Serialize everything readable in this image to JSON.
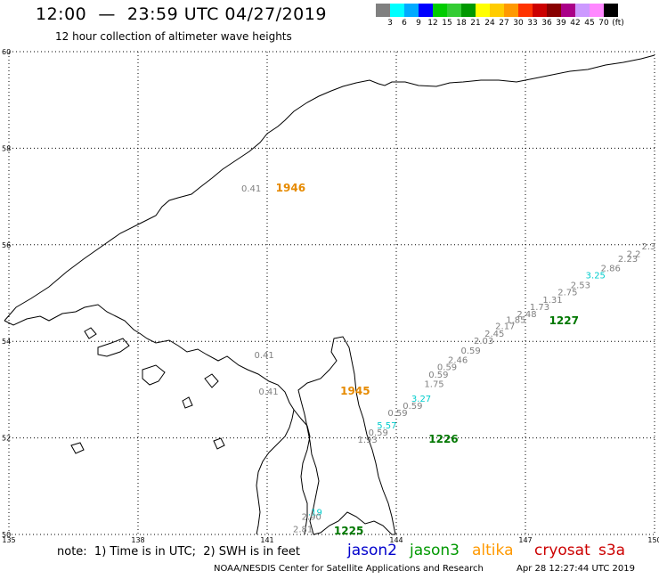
{
  "header": {
    "title": "12:00  —  23:59 UTC 04/27/2019",
    "subtitle": "12 hour collection of altimeter wave heights"
  },
  "colorbar": {
    "colors": [
      "#808080",
      "#00ffff",
      "#00aaff",
      "#0000ff",
      "#00cc00",
      "#33cc33",
      "#009900",
      "#ffff00",
      "#ffcc00",
      "#ff9900",
      "#ff3300",
      "#cc0000",
      "#880000",
      "#aa0088",
      "#cc99ff",
      "#ff88ff",
      "#000000"
    ],
    "labels": [
      "3",
      "6",
      "9",
      "12",
      "15",
      "18",
      "21",
      "24",
      "27",
      "30",
      "33",
      "36",
      "39",
      "42",
      "45",
      "70",
      "(ft)"
    ]
  },
  "axes": {
    "lat_labels": [
      "60",
      "58",
      "56",
      "54",
      "52",
      "50"
    ],
    "lon_labels": [
      "135",
      "138",
      "141",
      "144",
      "147",
      "150"
    ]
  },
  "tracks": [
    {
      "sat": "altika",
      "time": "1946",
      "color": "#e68a00",
      "values": [
        {
          "v": "0.41",
          "c": "#808080",
          "lon": 140.4,
          "lat": 57.1
        }
      ]
    },
    {
      "sat": "altika",
      "time": "1945",
      "color": "#e68a00",
      "values": [
        {
          "v": "0.41",
          "c": "#808080",
          "lon": 140.7,
          "lat": 53.65
        },
        {
          "v": "0.41",
          "c": "#808080",
          "lon": 140.8,
          "lat": 52.9
        }
      ]
    },
    {
      "sat": "jason3",
      "time": "1227",
      "color": "#007700",
      "values": [
        {
          "v": "2.3",
          "c": "#808080",
          "lon": 149.7,
          "lat": 55.9
        },
        {
          "v": "2.2",
          "c": "#808080",
          "lon": 149.35,
          "lat": 55.75
        },
        {
          "v": "2.23",
          "c": "#808080",
          "lon": 149.15,
          "lat": 55.65
        },
        {
          "v": "2.86",
          "c": "#808080",
          "lon": 148.75,
          "lat": 55.45
        },
        {
          "v": "3.25",
          "c": "#00cccc",
          "lon": 148.4,
          "lat": 55.3
        },
        {
          "v": "2.53",
          "c": "#808080",
          "lon": 148.05,
          "lat": 55.1
        },
        {
          "v": "2.75",
          "c": "#808080",
          "lon": 147.75,
          "lat": 54.95
        },
        {
          "v": "1.31",
          "c": "#808080",
          "lon": 147.4,
          "lat": 54.8
        },
        {
          "v": "1.73",
          "c": "#808080",
          "lon": 147.1,
          "lat": 54.65
        },
        {
          "v": "2.48",
          "c": "#808080",
          "lon": 146.8,
          "lat": 54.5
        },
        {
          "v": "1.85",
          "c": "#808080",
          "lon": 146.55,
          "lat": 54.38
        },
        {
          "v": "2.17",
          "c": "#808080",
          "lon": 146.3,
          "lat": 54.25
        },
        {
          "v": "2.45",
          "c": "#808080",
          "lon": 146.05,
          "lat": 54.1
        },
        {
          "v": "2.03",
          "c": "#808080",
          "lon": 145.8,
          "lat": 53.95
        },
        {
          "v": "0.59",
          "c": "#808080",
          "lon": 145.5,
          "lat": 53.75
        },
        {
          "v": "2.46",
          "c": "#808080",
          "lon": 145.2,
          "lat": 53.55
        },
        {
          "v": "0.59",
          "c": "#808080",
          "lon": 144.95,
          "lat": 53.4
        },
        {
          "v": "0.59",
          "c": "#808080",
          "lon": 144.75,
          "lat": 53.25
        }
      ]
    },
    {
      "sat": "jason3",
      "time": "1226",
      "color": "#007700",
      "values": [
        {
          "v": "1.75",
          "c": "#808080",
          "lon": 144.65,
          "lat": 53.05
        },
        {
          "v": "3.27",
          "c": "#00cccc",
          "lon": 144.35,
          "lat": 52.75
        },
        {
          "v": "0.59",
          "c": "#808080",
          "lon": 144.15,
          "lat": 52.6
        },
        {
          "v": "0.59",
          "c": "#808080",
          "lon": 143.8,
          "lat": 52.45
        },
        {
          "v": "5.57",
          "c": "#00cccc",
          "lon": 143.55,
          "lat": 52.2
        },
        {
          "v": "0.59",
          "c": "#808080",
          "lon": 143.35,
          "lat": 52.05
        },
        {
          "v": "1.93",
          "c": "#808080",
          "lon": 143.1,
          "lat": 51.9
        }
      ]
    },
    {
      "sat": "jason3",
      "time": "1225",
      "color": "#007700",
      "values": [
        {
          "v": ".19",
          "c": "#00cccc",
          "lon": 141.95,
          "lat": 50.4
        },
        {
          "v": "2.90",
          "c": "#808080",
          "lon": 141.8,
          "lat": 50.3
        },
        {
          "v": "2.81",
          "c": "#808080",
          "lon": 141.6,
          "lat": 50.05
        }
      ]
    }
  ],
  "track_labels": [
    {
      "text": "1946",
      "color": "#e68a00",
      "lon": 141.2,
      "lat": 57.1
    },
    {
      "text": "1945",
      "color": "#e68a00",
      "lon": 142.7,
      "lat": 52.9
    },
    {
      "text": "1227",
      "color": "#007700",
      "lon": 147.55,
      "lat": 54.35
    },
    {
      "text": "1226",
      "color": "#007700",
      "lon": 144.75,
      "lat": 51.9
    },
    {
      "text": "1225",
      "color": "#007700",
      "lon": 142.55,
      "lat": 50.0
    }
  ],
  "footer": {
    "note": "note:  1) Time is in UTC;  2) SWH is in feet",
    "satellites": [
      {
        "name": "jason2",
        "color": "#0000cc"
      },
      {
        "name": "jason3",
        "color": "#009900"
      },
      {
        "name": "altika",
        "color": "#ff9900"
      },
      {
        "name": "cryosat",
        "color": "#cc0000"
      },
      {
        "name": "s3a",
        "color": "#cc0000"
      }
    ],
    "credit": "NOAA/NESDIS Center for Satellite Applications and Research",
    "timestamp": "Apr 28 12:27:44 UTC 2019"
  }
}
